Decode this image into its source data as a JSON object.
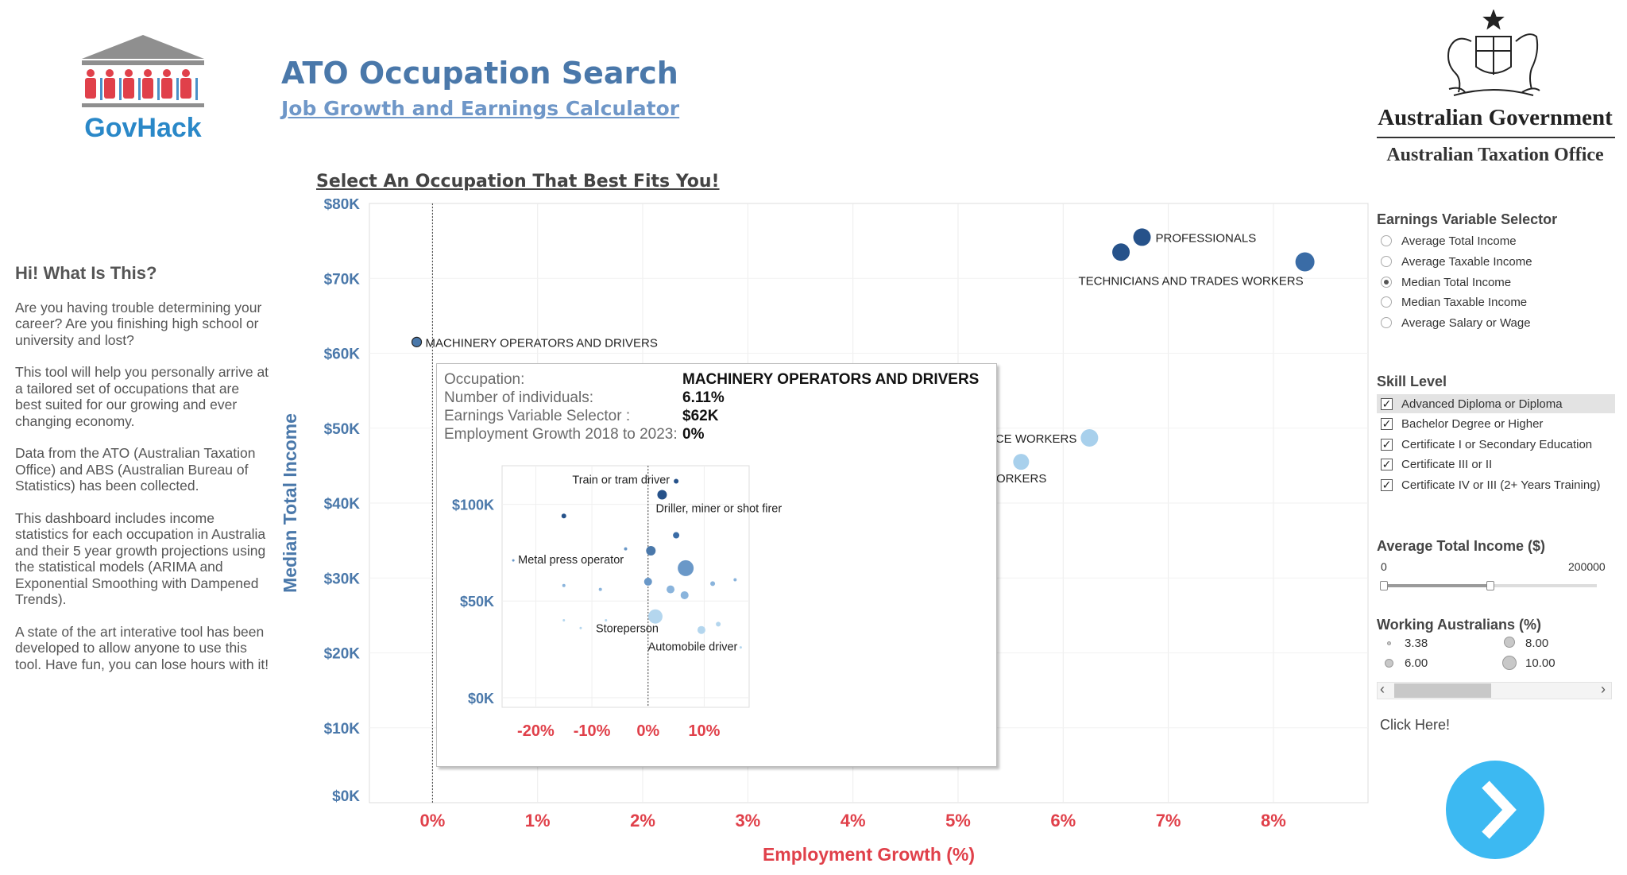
{
  "header": {
    "brand": "GovHack",
    "title": "ATO Occupation Search",
    "subtitle": "Job Growth and Earnings Calculator",
    "gov_name": "Australian Government",
    "gov_office": "Australian Taxation Office",
    "chart_heading": "Select An Occupation That Best Fits You!"
  },
  "info": {
    "heading": "Hi! What Is This?",
    "paragraphs": [
      "Are you having trouble determining your career? Are you finishing high school or university and lost?",
      "This tool will help you personally arrive at a tailored set of occupations that are best suited for our growing and ever changing economy.",
      "Data from the ATO (Australian Taxation Office) and ABS (Australian Bureau of Statistics) has been collected.",
      "This dashboard includes income statistics for each occupation in Australia and their 5 year growth projections using the statistical models (ARIMA and Exponential Smoothing with Dampened Trends).",
      "A state of the art interative tool has been developed to allow anyone to use this tool. Have fun, you can lose hours with it!"
    ]
  },
  "colors": {
    "title": "#4a78aa",
    "axis_y": "#4a78aa",
    "axis_x": "#e0404a",
    "dark_point": "#26528a",
    "light_point": "#9ecae9",
    "next_button": "#3cb9f2"
  },
  "chart_data": {
    "type": "scatter",
    "xlabel": "Employment Growth (%)",
    "ylabel": "Median Total Income",
    "x_ticks": [
      "0%",
      "1%",
      "2%",
      "3%",
      "4%",
      "5%",
      "6%",
      "7%",
      "8%"
    ],
    "y_ticks": [
      "$0K",
      "$10K",
      "$20K",
      "$30K",
      "$40K",
      "$50K",
      "$60K",
      "$70K",
      "$80K"
    ],
    "xlim": [
      -0.6,
      8.9
    ],
    "ylim": [
      0,
      80000
    ],
    "reference_line_x": 0,
    "points": [
      {
        "label": "PROFESSIONALS",
        "x": 6.75,
        "y": 75500,
        "size": 11,
        "color": "#26528a"
      },
      {
        "label": "",
        "x": 6.55,
        "y": 73500,
        "size": 11,
        "color": "#26528a"
      },
      {
        "label": "TECHNICIANS AND TRADES WORKERS",
        "x": 8.3,
        "y": 72200,
        "size": 12,
        "color": "#3a6ca6"
      },
      {
        "label": "MACHINERY OPERATORS AND DRIVERS",
        "x": -0.15,
        "y": 61500,
        "size": 6,
        "color": "#4a78aa"
      },
      {
        "label": "CE WORKERS",
        "x": 6.25,
        "y": 48700,
        "size": 11,
        "color": "#a8d0ec"
      },
      {
        "label": "DMINISTRATIVE WORKERS",
        "x": 5.6,
        "y": 45500,
        "size": 10,
        "color": "#a8d0ec"
      }
    ]
  },
  "tooltip": {
    "rows": [
      {
        "label": "Occupation:",
        "value": "MACHINERY OPERATORS AND DRIVERS"
      },
      {
        "label": "Number of individuals:",
        "value": "6.11%"
      },
      {
        "label": "Earnings Variable Selector :",
        "value": "$62K"
      },
      {
        "label": "Employment Growth 2018 to 2023:",
        "value": "0%"
      }
    ],
    "mini_chart": {
      "type": "scatter",
      "x_ticks": [
        "-20%",
        "-10%",
        "0%",
        "10%"
      ],
      "y_ticks": [
        "$0K",
        "$50K",
        "$100K"
      ],
      "xlim": [
        -26,
        18
      ],
      "ylim": [
        -5000,
        120000
      ],
      "points": [
        {
          "label": "Train or tram driver",
          "x": 5,
          "y": 112000,
          "size": 3,
          "color": "#26528a"
        },
        {
          "label": "Driller, miner or shot firer",
          "x": 2.5,
          "y": 105000,
          "size": 6,
          "color": "#26528a"
        },
        {
          "label": "",
          "x": -15,
          "y": 94000,
          "size": 3,
          "color": "#26528a"
        },
        {
          "label": "",
          "x": 5,
          "y": 84000,
          "size": 4,
          "color": "#3a6ca6"
        },
        {
          "label": "",
          "x": 0.5,
          "y": 76000,
          "size": 6,
          "color": "#4a78aa"
        },
        {
          "label": "",
          "x": -4,
          "y": 77000,
          "size": 2,
          "color": "#6a98c8"
        },
        {
          "label": "Metal press operator",
          "x": -24,
          "y": 71000,
          "size": 1.5,
          "color": "#6a98c8"
        },
        {
          "label": "",
          "x": 6.7,
          "y": 67000,
          "size": 10,
          "color": "#6a98c8"
        },
        {
          "label": "",
          "x": 0,
          "y": 60000,
          "size": 5,
          "color": "#6a98c8"
        },
        {
          "label": "",
          "x": 11.5,
          "y": 59000,
          "size": 3,
          "color": "#8ab4dc"
        },
        {
          "label": "",
          "x": 15.5,
          "y": 61000,
          "size": 2,
          "color": "#8ab4dc"
        },
        {
          "label": "",
          "x": -15,
          "y": 58000,
          "size": 2,
          "color": "#8ab4dc"
        },
        {
          "label": "",
          "x": -8.5,
          "y": 56000,
          "size": 2,
          "color": "#8ab4dc"
        },
        {
          "label": "",
          "x": 4,
          "y": 56000,
          "size": 5,
          "color": "#8ab4dc"
        },
        {
          "label": "",
          "x": 6.5,
          "y": 53000,
          "size": 5,
          "color": "#8ab4dc"
        },
        {
          "label": "Storeperson",
          "x": 1.3,
          "y": 42000,
          "size": 9,
          "color": "#b4d6ee"
        },
        {
          "label": "",
          "x": -15,
          "y": 40000,
          "size": 1.5,
          "color": "#b4d6ee"
        },
        {
          "label": "",
          "x": -12,
          "y": 36000,
          "size": 1.5,
          "color": "#b4d6ee"
        },
        {
          "label": "",
          "x": -7.5,
          "y": 40000,
          "size": 1.5,
          "color": "#b4d6ee"
        },
        {
          "label": "",
          "x": 9.5,
          "y": 35000,
          "size": 5,
          "color": "#b4d6ee"
        },
        {
          "label": "",
          "x": 12.5,
          "y": 38000,
          "size": 3,
          "color": "#b4d6ee"
        },
        {
          "label": "Automobile driver",
          "x": 16.5,
          "y": 26000,
          "size": 1.5,
          "color": "#b4d6ee"
        }
      ]
    }
  },
  "earnings_selector": {
    "title": "Earnings Variable Selector",
    "options": [
      {
        "label": "Average Total Income",
        "selected": false
      },
      {
        "label": "Average Taxable Income",
        "selected": false
      },
      {
        "label": "Median Total Income",
        "selected": true
      },
      {
        "label": "Median Taxable Income",
        "selected": false
      },
      {
        "label": "Average Salary or Wage",
        "selected": false
      }
    ]
  },
  "skill_level": {
    "title": "Skill Level",
    "options": [
      {
        "label": "Advanced Diploma or Diploma",
        "checked": true
      },
      {
        "label": "Bachelor Degree or Higher",
        "checked": true
      },
      {
        "label": "Certificate I or Secondary Education",
        "checked": true
      },
      {
        "label": "Certificate III or II",
        "checked": true
      },
      {
        "label": "Certificate IV or III (2+ Years Training)",
        "checked": true
      }
    ]
  },
  "income_slider": {
    "title": "Average Total Income ($)",
    "min_label": "0",
    "max_label": "200000",
    "value_fraction": 0.5
  },
  "working_legend": {
    "title": "Working Australians (%)",
    "items": [
      "3.38",
      "6.00",
      "8.00",
      "10.00"
    ]
  },
  "scroll": {
    "left": "‹",
    "right": "›"
  },
  "click_here": "Click Here!"
}
